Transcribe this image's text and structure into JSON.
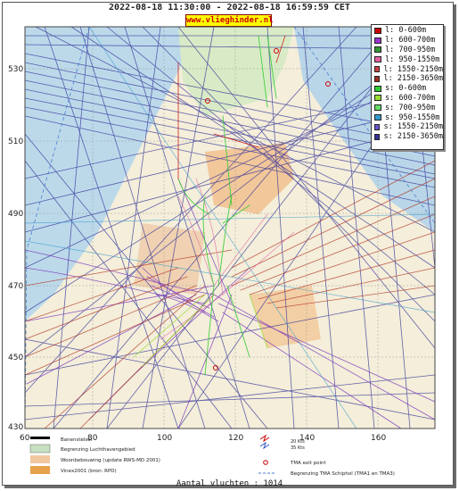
{
  "header": {
    "title": "2022-08-18 11:30:00 - 2022-08-18 16:59:59 CET",
    "site_badge": "www.vlieghinder.nl"
  },
  "axes": {
    "x_ticks": [
      "60",
      "80",
      "100",
      "120",
      "140",
      "160"
    ],
    "y_ticks": [
      "530",
      "510",
      "490",
      "470",
      "450",
      "430"
    ]
  },
  "legend": {
    "items": [
      {
        "label": "l: 0-600m",
        "color": "#cc0000"
      },
      {
        "label": "l: 600-700m",
        "color": "#9933cc"
      },
      {
        "label": "l: 700-950m",
        "color": "#339933"
      },
      {
        "label": "l: 950-1550m",
        "color": "#e060a0"
      },
      {
        "label": "l: 1550-2150m",
        "color": "#d04040"
      },
      {
        "label": "l: 2150-3650m",
        "color": "#a03020"
      },
      {
        "label": "s: 0-600m",
        "color": "#33cc33"
      },
      {
        "label": "s: 600-700m",
        "color": "#99dd33"
      },
      {
        "label": "s: 700-950m",
        "color": "#66dd66"
      },
      {
        "label": "s: 950-1550m",
        "color": "#3399cc"
      },
      {
        "label": "s: 1550-2150m",
        "color": "#6655cc"
      },
      {
        "label": "s: 2150-3650m",
        "color": "#333399"
      }
    ]
  },
  "map_legend": {
    "banenstelsel": "Banenstelsel",
    "luchthaven": "Begrenzing Luchthavengebied",
    "woonbebouwing": "Woonbebouwing (update RWS-MD 2001)",
    "vinex": "Vinex2001 (bron: RPD)",
    "wind_20": "20 Kts",
    "wind_35": "35 Kts",
    "tma_exit": "TMA exit point",
    "tma_border": "Begrenzing TMA Schiphol  (TMA1 en TMA3)"
  },
  "footer": {
    "count_text": "Aantal vluchten : 1014"
  }
}
